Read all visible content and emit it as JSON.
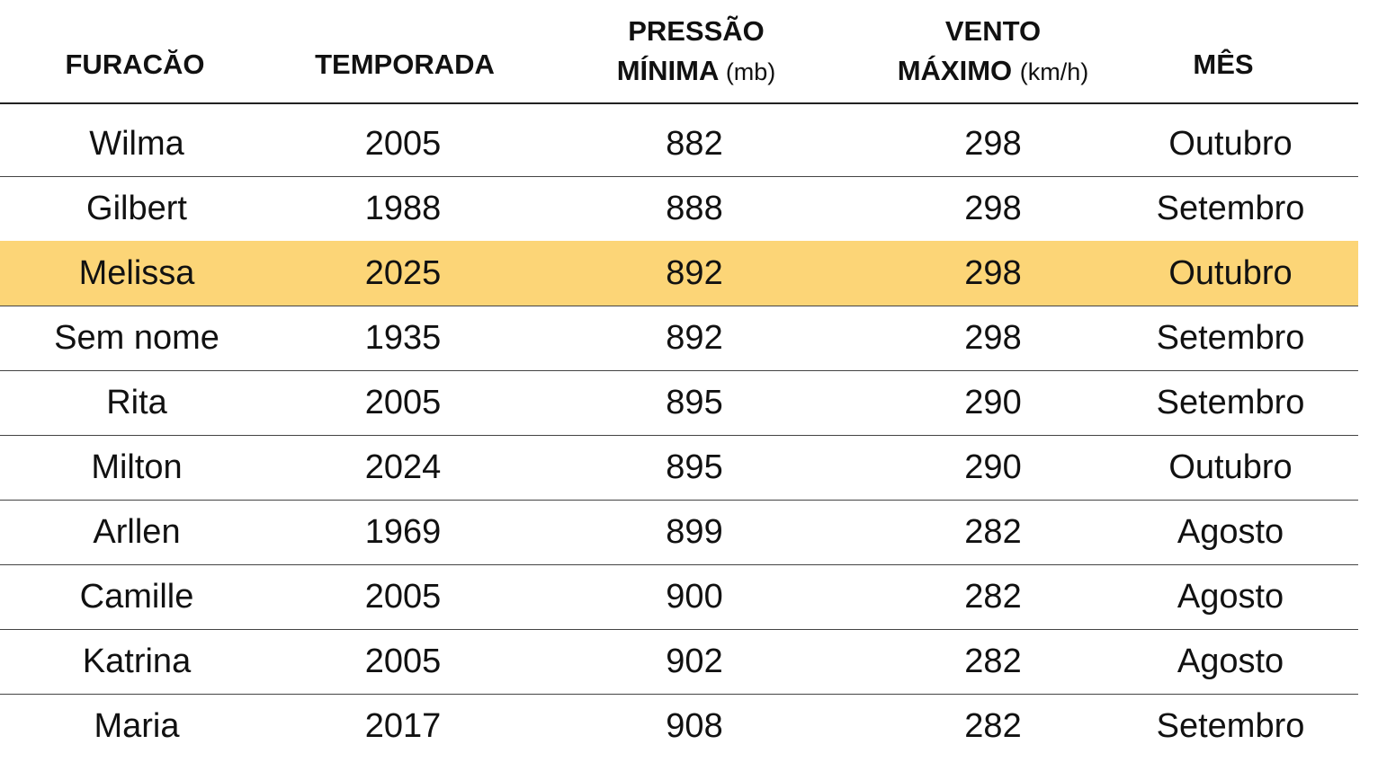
{
  "header": {
    "columns": [
      {
        "label": "FURACĂO"
      },
      {
        "label": "TEMPORADA"
      },
      {
        "label": "PRESSÃO",
        "label2": "MÍNIMA",
        "unit": "(mb)"
      },
      {
        "label": "VENTO",
        "label2": "MÁXIMO",
        "unit": "(km/h)"
      },
      {
        "label": "MÊS"
      }
    ]
  },
  "table": {
    "rows": [
      [
        "Wilma",
        "2005",
        "882",
        "298",
        "Outubro"
      ],
      [
        "Gilbert",
        "1988",
        "888",
        "298",
        "Setembro"
      ],
      [
        "Melissa",
        "2025",
        "892",
        "298",
        "Outubro"
      ],
      [
        "Sem nome",
        "1935",
        "892",
        "298",
        "Setembro"
      ],
      [
        "Rita",
        "2005",
        "895",
        "290",
        "Setembro"
      ],
      [
        "Milton",
        "2024",
        "895",
        "290",
        "Outubro"
      ],
      [
        "Arllen",
        "1969",
        "899",
        "282",
        "Agosto"
      ],
      [
        "Camille",
        "2005",
        "900",
        "282",
        "Agosto"
      ],
      [
        "Katrina",
        "2005",
        "902",
        "282",
        "Agosto"
      ],
      [
        "Maria",
        "2017",
        "908",
        "282",
        "Setembro"
      ]
    ]
  }
}
